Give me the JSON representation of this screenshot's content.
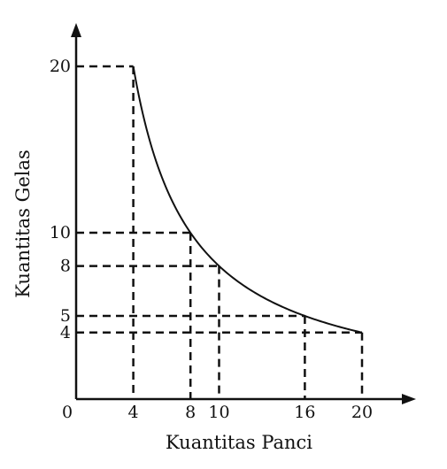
{
  "chart_data": {
    "type": "line",
    "xlabel": "Kuantitas Panci",
    "ylabel": "Kuantitas Gelas",
    "origin_label": "0",
    "xlim": [
      0,
      20
    ],
    "ylim": [
      0,
      20
    ],
    "x_ticks": [
      {
        "value": 4,
        "label": "4"
      },
      {
        "value": 8,
        "label": "8"
      },
      {
        "value": 10,
        "label": "10"
      },
      {
        "value": 16,
        "label": "16"
      },
      {
        "value": 20,
        "label": "20"
      }
    ],
    "y_ticks": [
      {
        "value": 20,
        "label": "20"
      },
      {
        "value": 10,
        "label": "10"
      },
      {
        "value": 8,
        "label": "8"
      },
      {
        "value": 5,
        "label": "5"
      },
      {
        "value": 4,
        "label": "4"
      }
    ],
    "series": [
      {
        "x": [
          4,
          8,
          10,
          16,
          20
        ],
        "y": [
          20,
          10,
          8,
          5,
          4
        ]
      }
    ],
    "reference_lines": "dashed lines from each curve point to both axes",
    "grid": false,
    "colors": {
      "axis": "#111111",
      "curve": "#111111",
      "dashed": "#111111"
    }
  }
}
